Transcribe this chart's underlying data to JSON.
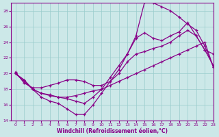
{
  "background_color": "#cce8e8",
  "grid_color": "#99cccc",
  "line_color": "#880088",
  "xlabel": "Windchill (Refroidissement éolien,°C)",
  "xlim": [
    -0.5,
    23
  ],
  "ylim": [
    14,
    29
  ],
  "yticks": [
    14,
    16,
    18,
    20,
    22,
    24,
    26,
    28
  ],
  "xticks": [
    0,
    1,
    2,
    3,
    4,
    5,
    6,
    7,
    8,
    9,
    10,
    11,
    12,
    13,
    14,
    15,
    16,
    17,
    18,
    19,
    20,
    21,
    22,
    23
  ],
  "line1_x": [
    0,
    1,
    2,
    3,
    4,
    5,
    6,
    7,
    8,
    9,
    10,
    11,
    12,
    13,
    14,
    15,
    16,
    17,
    18,
    19,
    20,
    21,
    22,
    23
  ],
  "line1_y": [
    20.0,
    19.2,
    18.0,
    17.0,
    16.5,
    16.2,
    15.5,
    14.8,
    14.8,
    16.0,
    17.5,
    19.0,
    20.5,
    22.5,
    24.8,
    29.1,
    29.0,
    28.5,
    28.0,
    27.2,
    26.3,
    25.5,
    23.5,
    20.8
  ],
  "line2_x": [
    0,
    1,
    2,
    3,
    4,
    5,
    6,
    7,
    8,
    9,
    10,
    11,
    12,
    13,
    14,
    15,
    16,
    17,
    18,
    19,
    20,
    21,
    22,
    23
  ],
  "line2_y": [
    20.0,
    19.2,
    18.0,
    17.5,
    17.2,
    17.0,
    16.8,
    16.5,
    16.2,
    17.0,
    18.0,
    19.5,
    21.0,
    22.5,
    24.5,
    25.2,
    24.5,
    24.2,
    24.8,
    25.3,
    26.5,
    24.8,
    23.0,
    22.5
  ],
  "line3_x": [
    0,
    1,
    2,
    3,
    4,
    5,
    6,
    7,
    8,
    9,
    10,
    11,
    12,
    13,
    14,
    15,
    16,
    17,
    18,
    19,
    20,
    21,
    22,
    23
  ],
  "line3_y": [
    20.2,
    18.8,
    18.2,
    18.2,
    18.5,
    18.8,
    19.2,
    19.2,
    19.0,
    18.5,
    18.5,
    19.0,
    20.0,
    21.5,
    22.5,
    22.8,
    23.2,
    23.5,
    24.0,
    24.8,
    25.5,
    24.8,
    23.0,
    21.0
  ],
  "line4_x": [
    0,
    2,
    3,
    4,
    5,
    6,
    7,
    8,
    9,
    10,
    11,
    12,
    13,
    14,
    15,
    16,
    17,
    18,
    19,
    20,
    21,
    22,
    23
  ],
  "line4_y": [
    20.0,
    18.0,
    17.5,
    17.3,
    17.0,
    17.0,
    17.2,
    17.5,
    17.8,
    18.0,
    18.5,
    19.0,
    19.5,
    20.0,
    20.5,
    21.0,
    21.5,
    22.0,
    22.5,
    23.0,
    23.5,
    24.0,
    20.8
  ]
}
